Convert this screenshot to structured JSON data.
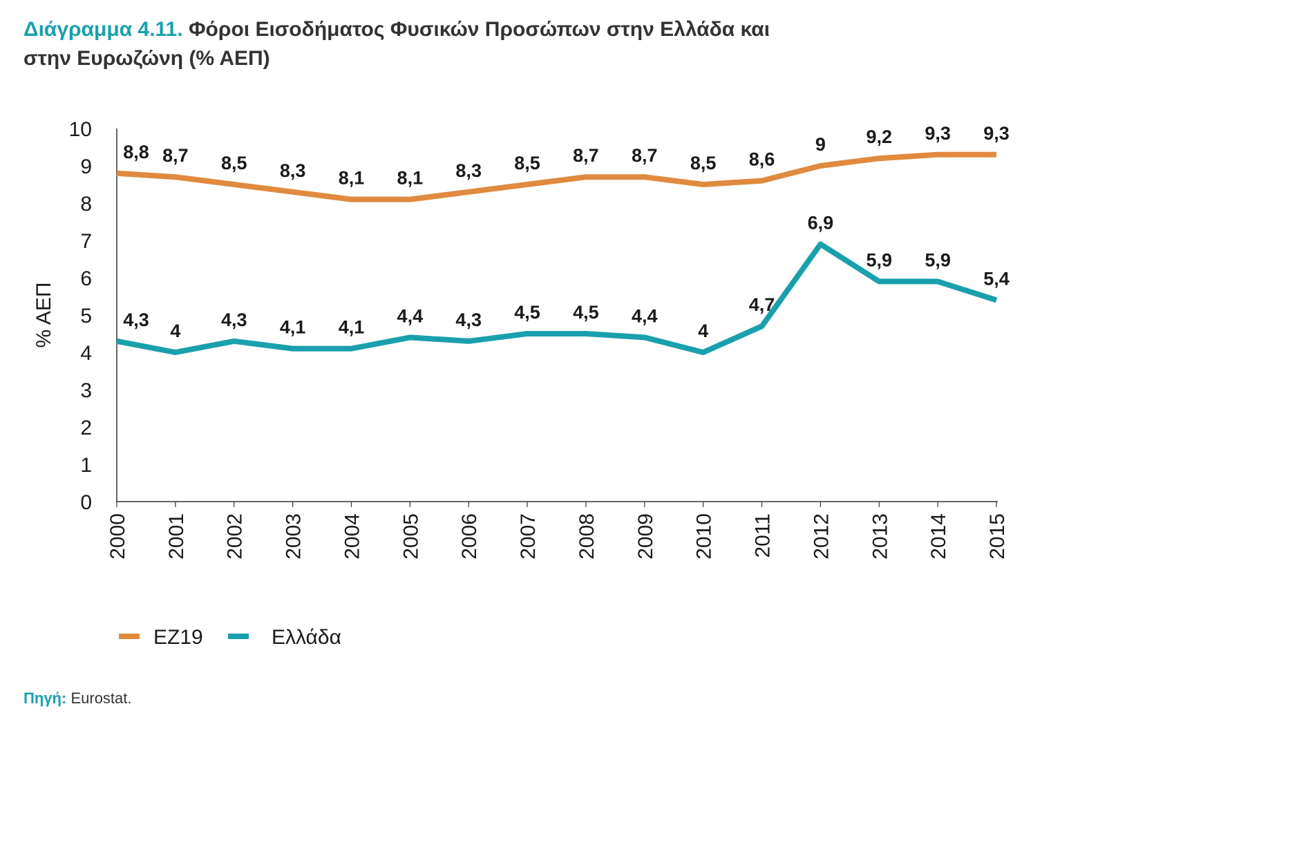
{
  "title": {
    "prefix": "Διάγραμμα 4.11.",
    "line1_rest": "Φόροι Εισοδήματος Φυσικών Προσώπων στην Ελλάδα και",
    "line2": "στην Ευρωζώνη (% ΑΕΠ)"
  },
  "source": {
    "label": "Πηγή:",
    "text": "Eurostat."
  },
  "colors": {
    "ez19": "#e08a3f",
    "greece": "#1aa0ad",
    "axis": "#333333",
    "accent": "#1aa0ad"
  },
  "chart_data": {
    "type": "line",
    "title": "Φόροι Εισοδήματος Φυσικών Προσώπων στην Ελλάδα και στην Ευρωζώνη (% ΑΕΠ)",
    "xlabel": "",
    "ylabel": "% ΑΕΠ",
    "ylim": [
      0,
      10
    ],
    "yticks": [
      "0",
      "1",
      "2",
      "3",
      "4",
      "5",
      "6",
      "7",
      "8",
      "9",
      "10"
    ],
    "categories": [
      "2000",
      "2001",
      "2002",
      "2003",
      "2004",
      "2005",
      "2006",
      "2007",
      "2008",
      "2009",
      "2010",
      "2011",
      "2012",
      "2013",
      "2014",
      "2015"
    ],
    "grid": false,
    "legend_position": "bottom-left",
    "series": [
      {
        "name": "ΕΖ19",
        "values": [
          8.8,
          8.7,
          8.5,
          8.3,
          8.1,
          8.1,
          8.3,
          8.5,
          8.7,
          8.7,
          8.5,
          8.6,
          9,
          9.2,
          9.3,
          9.3
        ],
        "labels": [
          "8,8",
          "8,7",
          "8,5",
          "8,3",
          "8,1",
          "8,1",
          "8,3",
          "8,5",
          "8,7",
          "8,7",
          "8,5",
          "8,6",
          "9",
          "9,2",
          "9,3",
          "9,3"
        ]
      },
      {
        "name": "Ελλάδα",
        "values": [
          4.3,
          4,
          4.3,
          4.1,
          4.1,
          4.4,
          4.3,
          4.5,
          4.5,
          4.4,
          4,
          4.7,
          6.9,
          5.9,
          5.9,
          5.4
        ],
        "labels": [
          "4,3",
          "4",
          "4,3",
          "4,1",
          "4,1",
          "4,4",
          "4,3",
          "4,5",
          "4,5",
          "4,4",
          "4",
          "4,7",
          "6,9",
          "5,9",
          "5,9",
          "5,4"
        ]
      }
    ]
  }
}
